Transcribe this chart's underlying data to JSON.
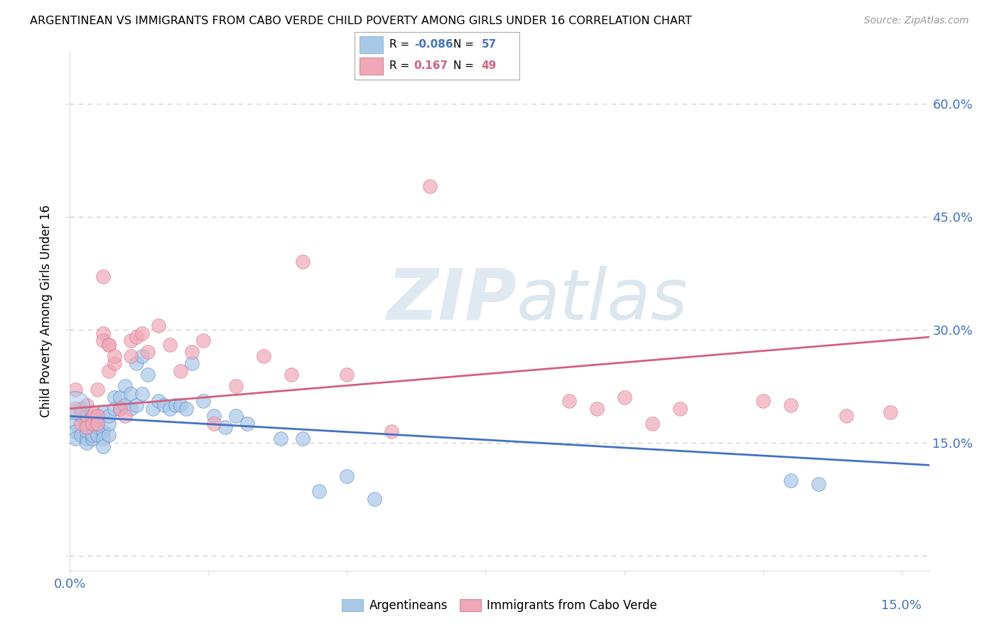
{
  "title": "ARGENTINEAN VS IMMIGRANTS FROM CABO VERDE CHILD POVERTY AMONG GIRLS UNDER 16 CORRELATION CHART",
  "source": "Source: ZipAtlas.com",
  "ylabel": "Child Poverty Among Girls Under 16",
  "yticks": [
    0.0,
    0.15,
    0.3,
    0.45,
    0.6
  ],
  "ytick_labels": [
    "",
    "15.0%",
    "30.0%",
    "45.0%",
    "60.0%"
  ],
  "xtick_vals": [
    0.0,
    0.025,
    0.05,
    0.075,
    0.1,
    0.125,
    0.15
  ],
  "xlim": [
    0.0,
    0.155
  ],
  "ylim": [
    -0.02,
    0.67
  ],
  "blue_R": "-0.086",
  "blue_N": "57",
  "pink_R": "0.167",
  "pink_N": "49",
  "blue_color": "#A8C8E8",
  "pink_color": "#F0A8B8",
  "blue_line_color": "#4472C4",
  "pink_line_color": "#D46080",
  "legend_label_blue": "Argentineans",
  "legend_label_pink": "Immigrants from Cabo Verde",
  "watermark_zip": "ZIP",
  "watermark_atlas": "atlas",
  "blue_line_y0": 0.185,
  "blue_line_y1": 0.12,
  "pink_line_y0": 0.195,
  "pink_line_y1": 0.29,
  "blue_scatter_x": [
    0.001,
    0.001,
    0.001,
    0.002,
    0.002,
    0.002,
    0.003,
    0.003,
    0.003,
    0.003,
    0.004,
    0.004,
    0.004,
    0.005,
    0.005,
    0.005,
    0.005,
    0.006,
    0.006,
    0.006,
    0.006,
    0.007,
    0.007,
    0.007,
    0.008,
    0.008,
    0.009,
    0.009,
    0.01,
    0.01,
    0.011,
    0.011,
    0.012,
    0.012,
    0.013,
    0.013,
    0.014,
    0.015,
    0.016,
    0.017,
    0.018,
    0.019,
    0.02,
    0.021,
    0.022,
    0.024,
    0.026,
    0.028,
    0.03,
    0.032,
    0.038,
    0.042,
    0.045,
    0.05,
    0.055,
    0.13,
    0.135
  ],
  "blue_scatter_y": [
    0.175,
    0.165,
    0.155,
    0.185,
    0.16,
    0.195,
    0.175,
    0.155,
    0.165,
    0.15,
    0.155,
    0.16,
    0.18,
    0.17,
    0.16,
    0.185,
    0.175,
    0.19,
    0.165,
    0.155,
    0.145,
    0.16,
    0.175,
    0.185,
    0.21,
    0.195,
    0.195,
    0.21,
    0.2,
    0.225,
    0.195,
    0.215,
    0.255,
    0.2,
    0.265,
    0.215,
    0.24,
    0.195,
    0.205,
    0.2,
    0.195,
    0.2,
    0.2,
    0.195,
    0.255,
    0.205,
    0.185,
    0.17,
    0.185,
    0.175,
    0.155,
    0.155,
    0.085,
    0.105,
    0.075,
    0.1,
    0.095
  ],
  "pink_scatter_x": [
    0.001,
    0.001,
    0.002,
    0.002,
    0.003,
    0.003,
    0.003,
    0.004,
    0.004,
    0.005,
    0.005,
    0.005,
    0.006,
    0.006,
    0.006,
    0.007,
    0.007,
    0.007,
    0.008,
    0.008,
    0.009,
    0.01,
    0.011,
    0.011,
    0.012,
    0.013,
    0.014,
    0.016,
    0.018,
    0.02,
    0.022,
    0.024,
    0.026,
    0.03,
    0.035,
    0.04,
    0.042,
    0.05,
    0.058,
    0.065,
    0.09,
    0.095,
    0.1,
    0.105,
    0.11,
    0.125,
    0.13,
    0.14,
    0.148
  ],
  "pink_scatter_y": [
    0.22,
    0.195,
    0.19,
    0.175,
    0.185,
    0.17,
    0.2,
    0.19,
    0.175,
    0.185,
    0.22,
    0.175,
    0.37,
    0.295,
    0.285,
    0.28,
    0.245,
    0.28,
    0.255,
    0.265,
    0.195,
    0.185,
    0.285,
    0.265,
    0.29,
    0.295,
    0.27,
    0.305,
    0.28,
    0.245,
    0.27,
    0.285,
    0.175,
    0.225,
    0.265,
    0.24,
    0.39,
    0.24,
    0.165,
    0.49,
    0.205,
    0.195,
    0.21,
    0.175,
    0.195,
    0.205,
    0.2,
    0.185,
    0.19
  ]
}
